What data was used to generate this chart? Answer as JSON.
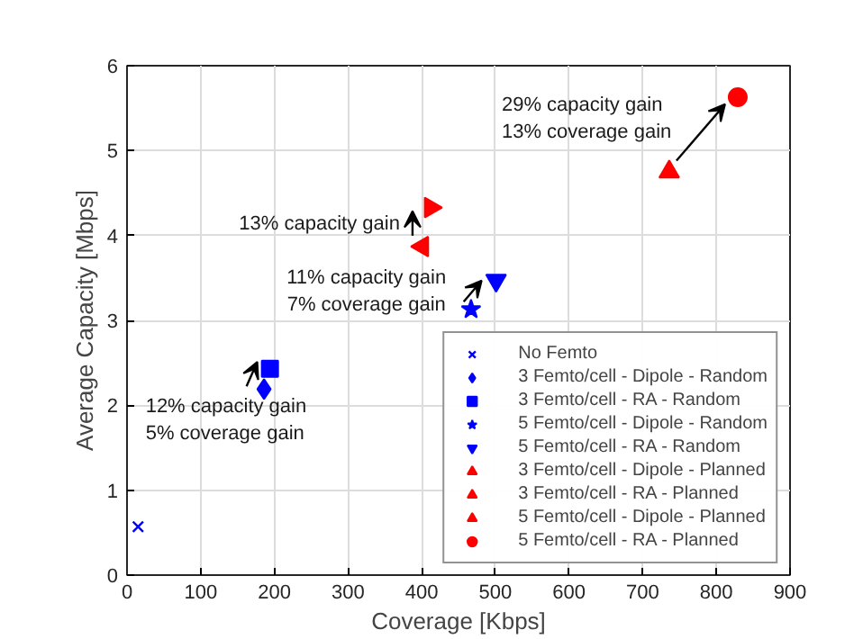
{
  "chart_data": {
    "type": "scatter",
    "xlabel": "Coverage [Kbps]",
    "ylabel": "Average Capacity [Mbps]",
    "xlim": [
      0,
      900
    ],
    "xticks": [
      0,
      100,
      200,
      300,
      400,
      500,
      600,
      700,
      800,
      900
    ],
    "ylim": [
      0,
      6
    ],
    "yticks": [
      0,
      1,
      2,
      3,
      4,
      5,
      6
    ],
    "grid": true,
    "legend": "bottom right",
    "series": [
      {
        "name": "No Femto",
        "color": "#0000ff",
        "marker": "x",
        "x": [
          15
        ],
        "values": [
          0.57
        ]
      },
      {
        "name": "3 Femto/cell - Dipole - Random",
        "color": "#0000ff",
        "marker": "diamond",
        "x": [
          186
        ],
        "values": [
          2.19
        ]
      },
      {
        "name": "3 Femto/cell - RA - Random",
        "color": "#0000ff",
        "marker": "square",
        "x": [
          194
        ],
        "values": [
          2.43
        ]
      },
      {
        "name": "5 Femto/cell - Dipole - Random",
        "color": "#0000ff",
        "marker": "star",
        "x": [
          467
        ],
        "values": [
          3.13
        ]
      },
      {
        "name": "5 Femto/cell - RA - Random",
        "color": "#0000ff",
        "marker": "triangle_down",
        "x": [
          501
        ],
        "values": [
          3.47
        ]
      },
      {
        "name": "3 Femto/cell - Dipole - Planned",
        "color": "#ff0000",
        "marker": "triangle_left",
        "x": [
          401
        ],
        "values": [
          3.87
        ]
      },
      {
        "name": "3 Femto/cell - RA - Planned",
        "color": "#ff0000",
        "marker": "triangle_right",
        "x": [
          412
        ],
        "values": [
          4.33
        ]
      },
      {
        "name": "5 Femto/cell - Dipole - Planned",
        "color": "#ff0000",
        "marker": "triangle",
        "x": [
          736
        ],
        "values": [
          4.75
        ]
      },
      {
        "name": "5 Femto/cell - RA - Planned",
        "color": "#ff0000",
        "marker": "circle",
        "x": [
          829
        ],
        "values": [
          5.63
        ]
      }
    ],
    "annotations": [
      {
        "text": "29% capacity gain\n13% coverage gain",
        "x": 829,
        "y": 5.63
      },
      {
        "text": "13% capacity gain",
        "x": 412,
        "y": 4.33
      },
      {
        "text": "11% capacity gain\n7% coverage gain",
        "x": 501,
        "y": 3.47
      },
      {
        "text": "12% capacity gain\n5% coverage gain",
        "x": 194,
        "y": 2.43
      }
    ]
  }
}
